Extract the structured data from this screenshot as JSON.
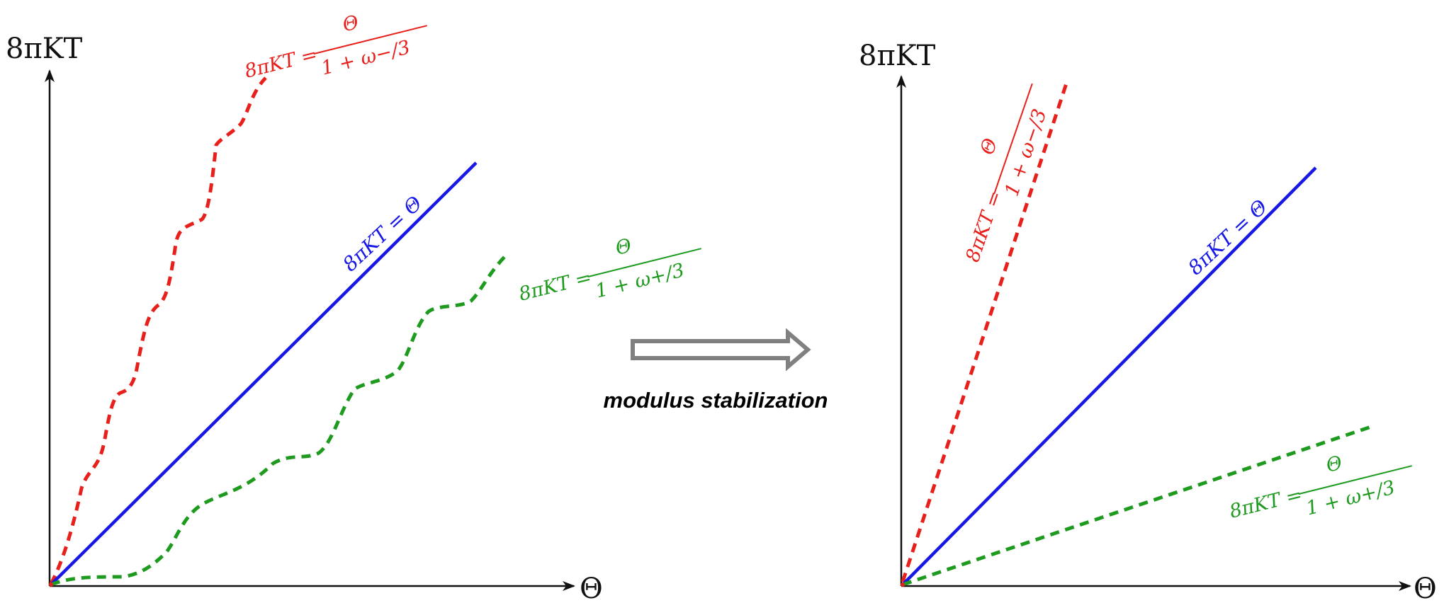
{
  "left_panel": {
    "y_axis_label": "8πKT",
    "x_axis_label": "Θ",
    "red_label_lhs": "8πKT =",
    "red_label_num": "Θ",
    "red_label_den": "1 + ω−/3",
    "blue_label": "8πKT = Θ",
    "green_label_lhs": "8πKT =",
    "green_label_num": "Θ",
    "green_label_den": "1 + ω+/3"
  },
  "right_panel": {
    "y_axis_label": "8πKT",
    "x_axis_label": "Θ",
    "red_label_lhs": "8πKT =",
    "red_label_num": "Θ",
    "red_label_den": "1 + ω−/3",
    "blue_label": "8πKT = Θ",
    "green_label_lhs": "8πKT =",
    "green_label_num": "Θ",
    "green_label_den": "1 + ω+/3"
  },
  "arrow": {
    "caption": "modulus stabilization"
  },
  "colors": {
    "red": "#e8201c",
    "blue": "#1717e6",
    "green": "#1e9a1e",
    "axis": "#111111",
    "arrow": "#808080"
  }
}
